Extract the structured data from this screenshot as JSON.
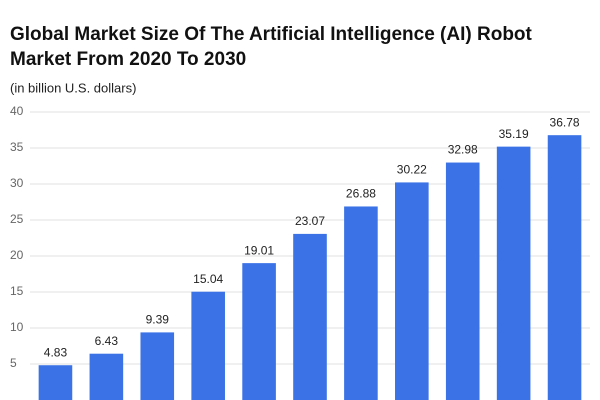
{
  "chart_data": {
    "type": "bar",
    "title": "Global Market Size Of The Artificial Intelligence (AI) Robot",
    "title_line2": "Market From 2020 To 2030",
    "subtitle": "(in billion U.S. dollars)",
    "categories": [
      null,
      null,
      null,
      null,
      null,
      null,
      null,
      null,
      null,
      null,
      null
    ],
    "values": [
      4.83,
      6.43,
      9.39,
      15.04,
      19.01,
      23.07,
      26.88,
      30.22,
      32.98,
      35.19,
      36.78
    ],
    "color": "#3b73e6",
    "ylim": [
      0,
      40
    ],
    "yticks": [
      5,
      10,
      15,
      20,
      25,
      30,
      35,
      40
    ],
    "grid": true
  }
}
